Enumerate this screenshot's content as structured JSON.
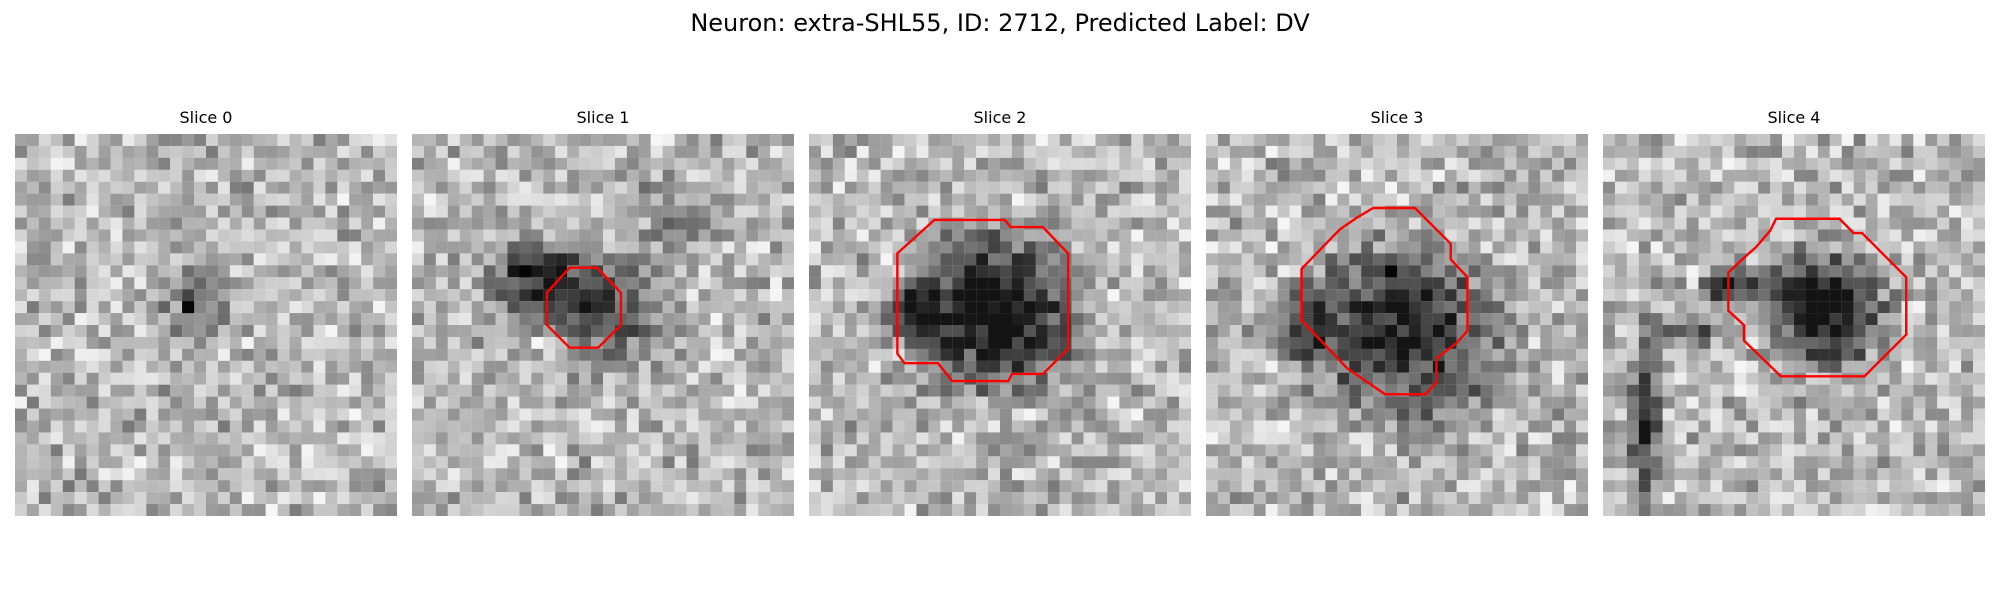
{
  "figure": {
    "title": "Neuron: extra-SHL55, ID: 2712, Predicted Label: DV"
  },
  "colors": {
    "background": "#ffffff",
    "contour": "#ff0000",
    "image_colormap": "grayscale"
  },
  "slices": [
    {
      "label": "Slice 0",
      "has_contour": false,
      "blob_darkness": 0.28,
      "has_dark_pixel": true
    },
    {
      "label": "Slice 1",
      "has_contour": true,
      "blob_darkness": 0.55,
      "has_dark_pixel": true
    },
    {
      "label": "Slice 2",
      "has_contour": true,
      "blob_darkness": 0.72,
      "has_dark_pixel": false
    },
    {
      "label": "Slice 3",
      "has_contour": true,
      "blob_darkness": 0.62,
      "has_dark_pixel": true
    },
    {
      "label": "Slice 4",
      "has_contour": true,
      "blob_darkness": 0.74,
      "has_dark_pixel": false
    }
  ]
}
